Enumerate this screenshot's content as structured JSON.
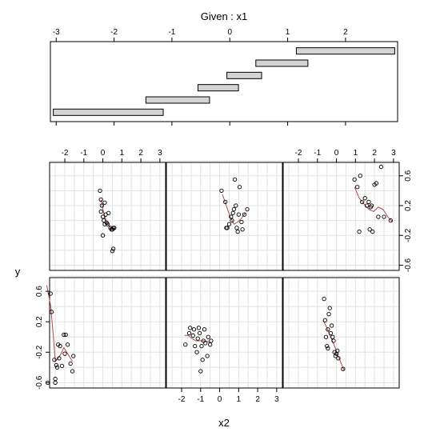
{
  "chart_data": {
    "type": "scatter",
    "title": "Given : x1",
    "xlabel": "x2",
    "ylabel": "y",
    "given": {
      "xlim": [
        -3.1,
        2.9
      ],
      "ticks": [
        -3,
        -2,
        -1,
        0,
        1,
        2
      ],
      "tick_labels": [
        "-3",
        "-2",
        "-1",
        "0",
        "1",
        "2"
      ],
      "intervals": [
        [
          -3.05,
          -1.15
        ],
        [
          -1.45,
          -0.35
        ],
        [
          -0.55,
          0.15
        ],
        [
          -0.05,
          0.55
        ],
        [
          0.45,
          1.35
        ],
        [
          1.15,
          2.85
        ]
      ]
    },
    "panel_xlim": [
      -2.8,
      3.3
    ],
    "panel_ylim": [
      -0.67,
      0.78
    ],
    "x_ticks": [
      -2,
      -1,
      0,
      1,
      2,
      3
    ],
    "x_tick_labels": [
      "-2",
      "-1",
      "0",
      "1",
      "2",
      "3"
    ],
    "y_ticks": [
      -0.6,
      -0.2,
      0.2,
      0.6
    ],
    "y_tick_labels": [
      "-0.6",
      "-0.2",
      "0.2",
      "0.6"
    ],
    "grid": true,
    "colors": {
      "smooth": "#b04a4a",
      "points": "#000000",
      "grid": "#e2e2e2",
      "bar": "#d4d4d4"
    },
    "panels": [
      {
        "id": "bottom-left",
        "points": [
          [
            -2.75,
            0.57
          ],
          [
            -2.7,
            0.33
          ],
          [
            -2.55,
            -0.3
          ],
          [
            -2.5,
            -0.55
          ],
          [
            -2.45,
            -0.37
          ],
          [
            -2.4,
            -0.4
          ],
          [
            -2.35,
            -0.1
          ],
          [
            -2.25,
            -0.12
          ],
          [
            -2.15,
            -0.38
          ],
          [
            -2.05,
            0.03
          ],
          [
            -2.0,
            -0.22
          ],
          [
            -1.95,
            0.03
          ],
          [
            -1.85,
            -0.1
          ],
          [
            -1.7,
            -0.35
          ],
          [
            -1.6,
            -0.45
          ],
          [
            -1.55,
            -0.25
          ],
          [
            -2.3,
            -0.28
          ],
          [
            -2.5,
            -0.6
          ],
          [
            -2.9,
            -0.6
          ]
        ],
        "smooth": [
          [
            -2.95,
            0.68
          ],
          [
            -2.75,
            0.42
          ],
          [
            -2.6,
            0.0
          ],
          [
            -2.5,
            -0.32
          ],
          [
            -2.35,
            -0.28
          ],
          [
            -2.2,
            -0.22
          ],
          [
            -2.05,
            -0.14
          ],
          [
            -1.9,
            -0.2
          ],
          [
            -1.75,
            -0.26
          ],
          [
            -1.6,
            -0.32
          ]
        ]
      },
      {
        "id": "bottom-middle",
        "points": [
          [
            -1.8,
            -0.1
          ],
          [
            -1.6,
            0.05
          ],
          [
            -1.55,
            0.12
          ],
          [
            -1.4,
            0.02
          ],
          [
            -1.35,
            0.1
          ],
          [
            -1.3,
            -0.12
          ],
          [
            -1.2,
            -0.2
          ],
          [
            -1.1,
            0.12
          ],
          [
            -1.05,
            0.05
          ],
          [
            -0.95,
            -0.12
          ],
          [
            -0.85,
            -0.05
          ],
          [
            -0.8,
            0.1
          ],
          [
            -0.75,
            -0.08
          ],
          [
            -0.65,
            -0.25
          ],
          [
            -0.6,
            0.0
          ],
          [
            -0.5,
            -0.1
          ],
          [
            -0.45,
            -0.05
          ],
          [
            -1.0,
            -0.45
          ],
          [
            -0.9,
            -0.3
          ],
          [
            -1.15,
            -0.02
          ]
        ],
        "smooth": [
          [
            -1.85,
            0.02
          ],
          [
            -1.65,
            0.02
          ],
          [
            -1.45,
            -0.02
          ],
          [
            -1.25,
            -0.05
          ],
          [
            -1.05,
            -0.05
          ],
          [
            -0.85,
            -0.05
          ],
          [
            -0.65,
            -0.06
          ],
          [
            -0.45,
            -0.08
          ]
        ]
      },
      {
        "id": "bottom-right",
        "points": [
          [
            -0.65,
            0.5
          ],
          [
            -0.6,
            0.22
          ],
          [
            -0.55,
            0.0
          ],
          [
            -0.5,
            -0.12
          ],
          [
            -0.45,
            0.1
          ],
          [
            -0.4,
            0.3
          ],
          [
            -0.35,
            0.38
          ],
          [
            -0.3,
            0.05
          ],
          [
            -0.25,
            0.15
          ],
          [
            -0.2,
            0.0
          ],
          [
            -0.15,
            -0.05
          ],
          [
            -0.1,
            -0.2
          ],
          [
            -0.05,
            -0.25
          ],
          [
            0.0,
            -0.22
          ],
          [
            0.05,
            -0.18
          ],
          [
            0.1,
            -0.28
          ],
          [
            0.35,
            -0.42
          ],
          [
            -0.45,
            -0.15
          ]
        ],
        "smooth": [
          [
            -0.7,
            0.22
          ],
          [
            -0.5,
            0.12
          ],
          [
            -0.3,
            0.0
          ],
          [
            -0.1,
            -0.12
          ],
          [
            0.1,
            -0.25
          ],
          [
            0.3,
            -0.38
          ],
          [
            0.4,
            -0.44
          ]
        ]
      },
      {
        "id": "top-left",
        "points": [
          [
            -0.15,
            0.4
          ],
          [
            -0.1,
            0.28
          ],
          [
            -0.05,
            0.2
          ],
          [
            -0.1,
            0.12
          ],
          [
            0.0,
            0.05
          ],
          [
            0.05,
            0.0
          ],
          [
            0.1,
            -0.05
          ],
          [
            0.15,
            0.08
          ],
          [
            0.2,
            -0.03
          ],
          [
            0.25,
            -0.05
          ],
          [
            0.3,
            0.1
          ],
          [
            0.4,
            -0.1
          ],
          [
            0.45,
            -0.12
          ],
          [
            0.5,
            -0.12
          ],
          [
            0.55,
            -0.1
          ],
          [
            0.6,
            -0.1
          ],
          [
            0.5,
            -0.41
          ],
          [
            0.55,
            -0.38
          ],
          [
            0.0,
            -0.2
          ],
          [
            0.1,
            0.24
          ]
        ],
        "smooth": [
          [
            -0.1,
            0.28
          ],
          [
            0.05,
            0.1
          ],
          [
            0.2,
            -0.02
          ],
          [
            0.35,
            -0.08
          ],
          [
            0.5,
            -0.11
          ],
          [
            0.65,
            -0.11
          ]
        ]
      },
      {
        "id": "top-middle",
        "points": [
          [
            0.1,
            0.4
          ],
          [
            0.3,
            0.25
          ],
          [
            0.35,
            -0.1
          ],
          [
            0.4,
            -0.1
          ],
          [
            0.5,
            -0.05
          ],
          [
            0.6,
            0.05
          ],
          [
            0.65,
            0.0
          ],
          [
            0.7,
            0.1
          ],
          [
            0.75,
            0.15
          ],
          [
            0.8,
            0.55
          ],
          [
            0.85,
            0.2
          ],
          [
            0.9,
            -0.1
          ],
          [
            0.95,
            -0.15
          ],
          [
            1.0,
            0.08
          ],
          [
            1.05,
            0.45
          ],
          [
            1.15,
            -0.02
          ],
          [
            1.3,
            0.08
          ],
          [
            1.45,
            0.15
          ],
          [
            1.2,
            -0.12
          ]
        ],
        "smooth": [
          [
            0.15,
            0.35
          ],
          [
            0.35,
            0.2
          ],
          [
            0.55,
            0.05
          ],
          [
            0.75,
            -0.05
          ],
          [
            0.95,
            -0.02
          ],
          [
            1.15,
            0.03
          ],
          [
            1.35,
            0.1
          ]
        ]
      },
      {
        "id": "top-right",
        "points": [
          [
            0.95,
            0.55
          ],
          [
            1.1,
            0.45
          ],
          [
            1.2,
            -0.15
          ],
          [
            1.25,
            0.6
          ],
          [
            1.35,
            0.25
          ],
          [
            1.5,
            0.3
          ],
          [
            1.6,
            0.2
          ],
          [
            1.7,
            0.25
          ],
          [
            1.75,
            -0.12
          ],
          [
            1.8,
            0.18
          ],
          [
            1.9,
            -0.15
          ],
          [
            2.0,
            0.48
          ],
          [
            2.1,
            0.5
          ],
          [
            2.2,
            0.05
          ],
          [
            2.35,
            0.72
          ],
          [
            2.5,
            0.05
          ],
          [
            2.85,
            0.0
          ],
          [
            1.85,
            0.2
          ]
        ],
        "smooth": [
          [
            0.95,
            0.45
          ],
          [
            1.2,
            0.3
          ],
          [
            1.45,
            0.22
          ],
          [
            1.7,
            0.15
          ],
          [
            1.95,
            0.12
          ],
          [
            2.2,
            0.18
          ],
          [
            2.45,
            0.15
          ],
          [
            2.7,
            0.05
          ],
          [
            2.95,
            -0.02
          ]
        ]
      }
    ]
  }
}
